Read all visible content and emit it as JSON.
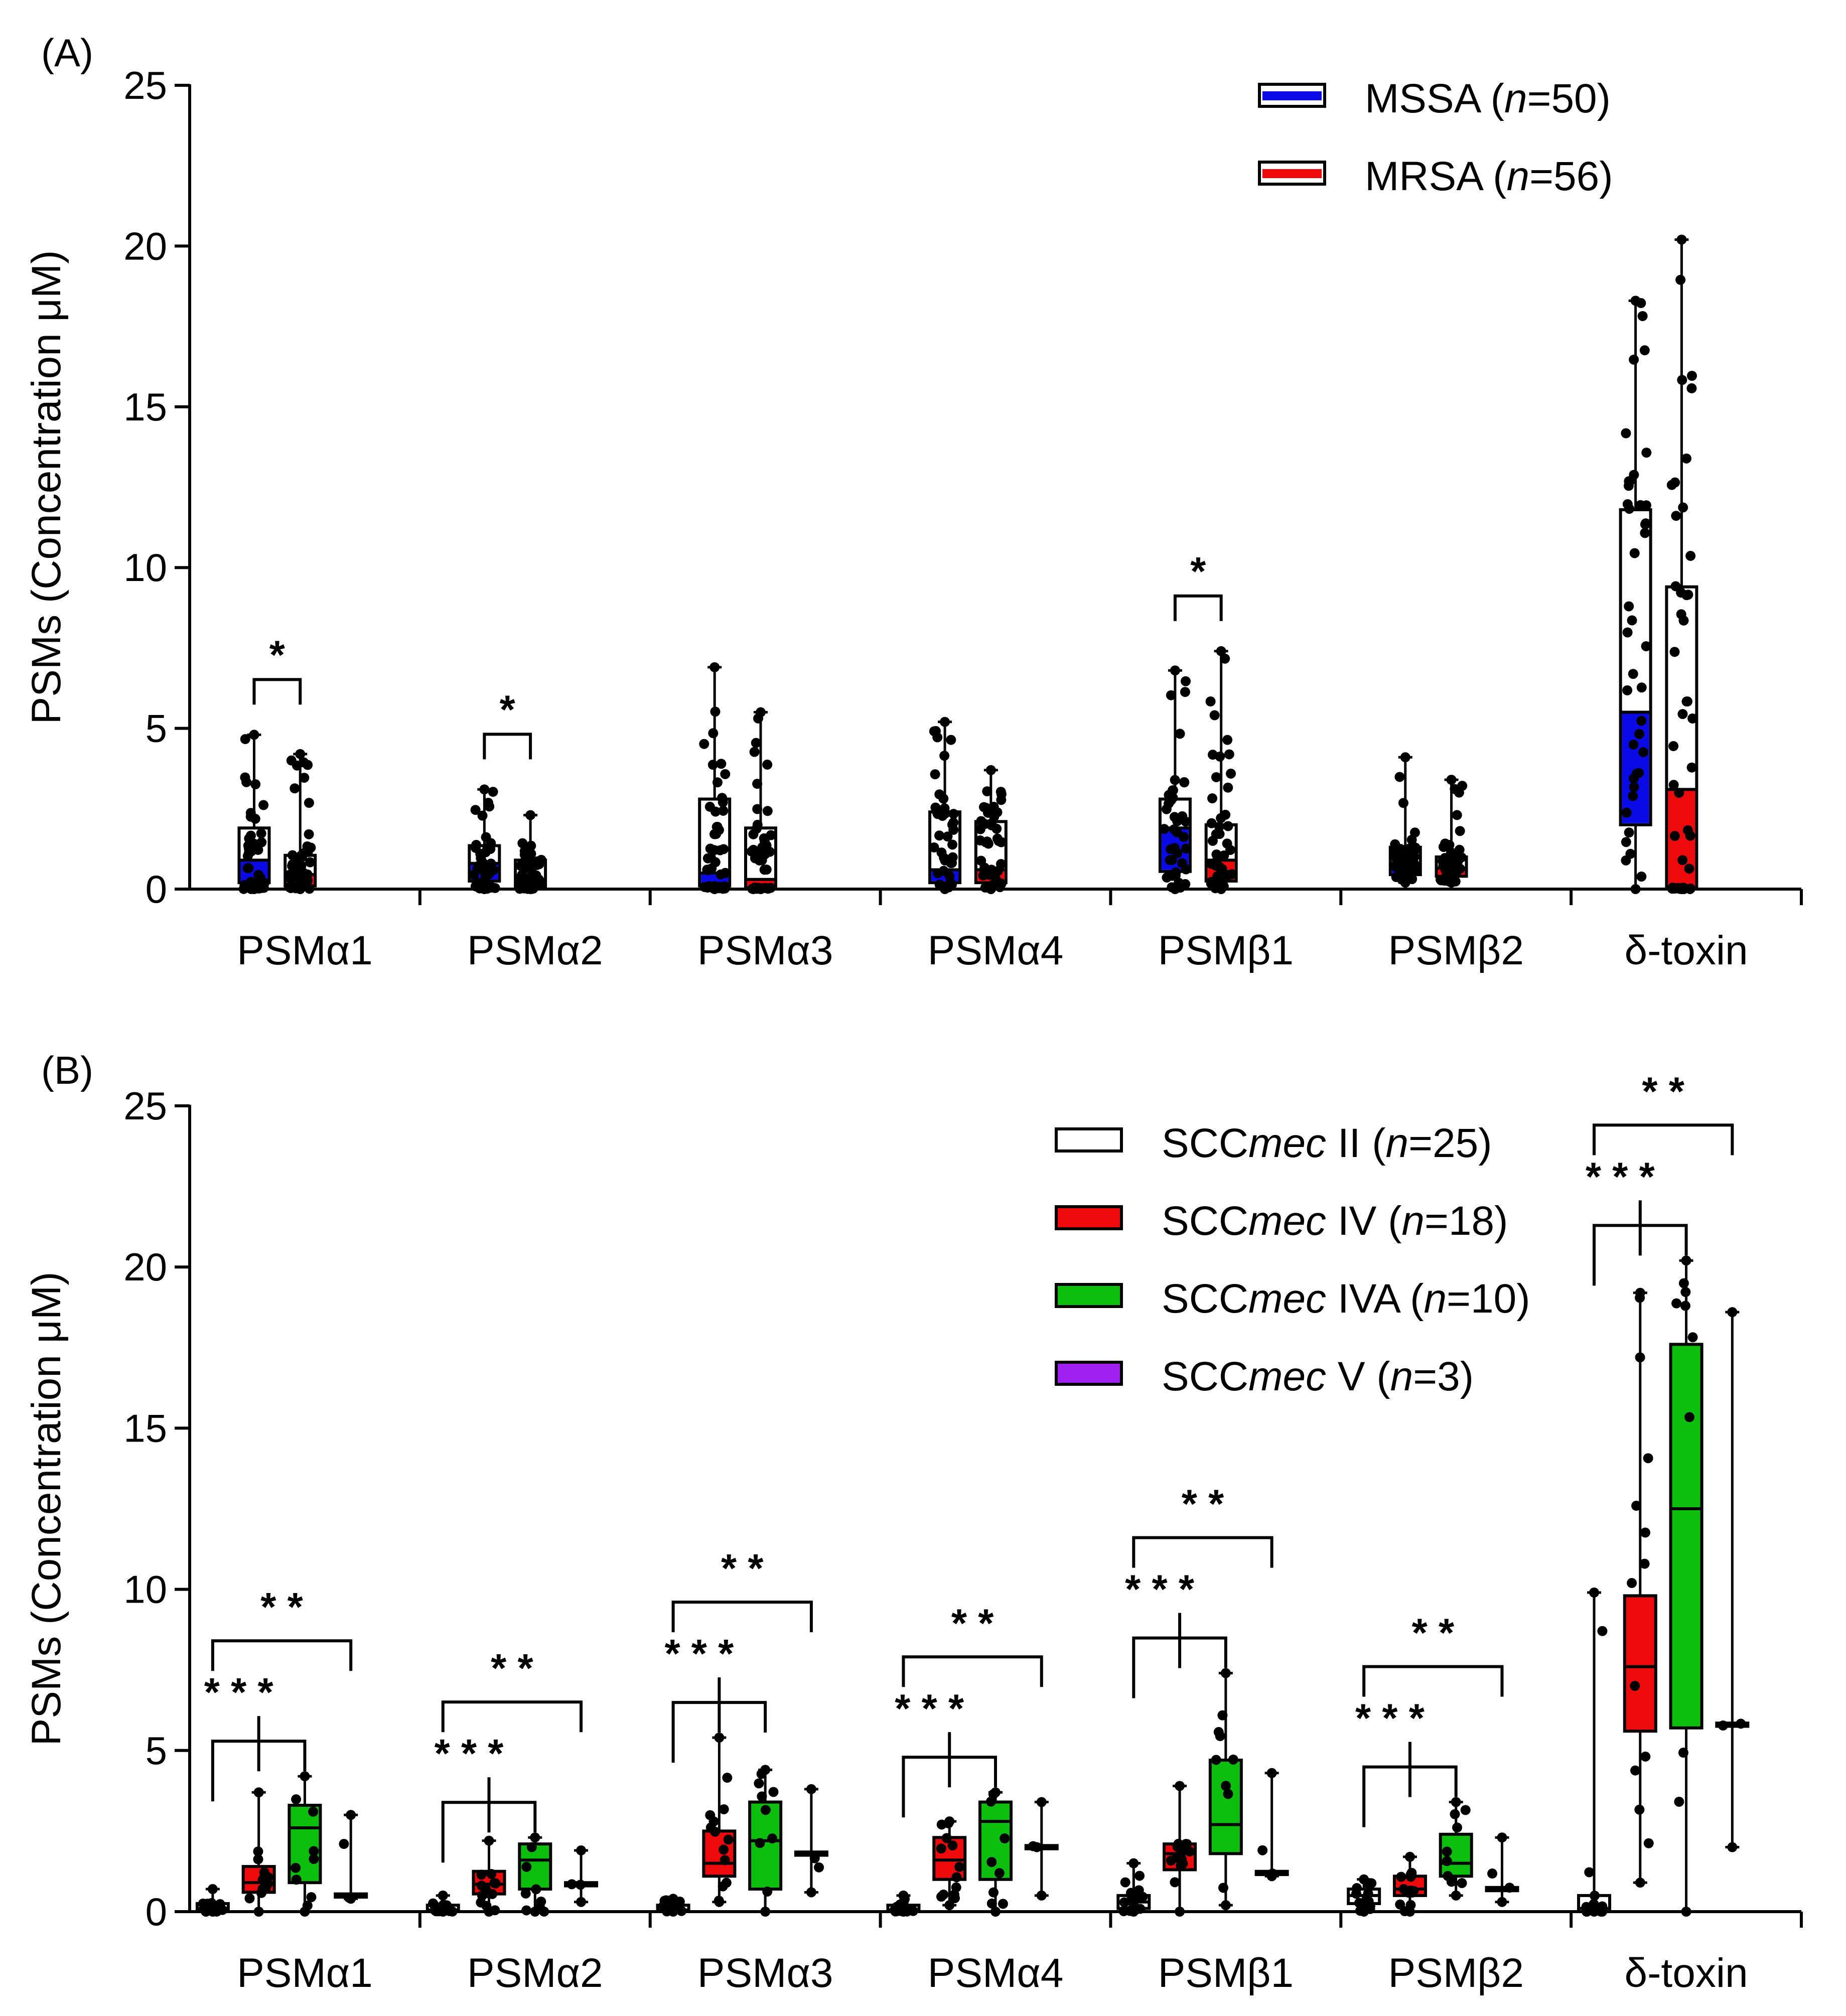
{
  "chart_data": [
    {
      "panel": "(A)",
      "type": "box",
      "ylabel": "PSMs (Concentration μM)",
      "ylim": [
        0,
        25
      ],
      "yticks": [
        0,
        5,
        10,
        15,
        20,
        25
      ],
      "categories": [
        "PSMα1",
        "PSMα2",
        "PSMα3",
        "PSMα4",
        "PSMβ1",
        "PSMβ2",
        "δ-toxin"
      ],
      "legend_position": "top-right",
      "series": [
        {
          "name": "MSSA",
          "n_label": "n",
          "n": "=50",
          "color": "#0a0ae6",
          "boxes": [
            {
              "min": 0,
              "q1": 0.2,
              "median": 0.9,
              "q3": 1.9,
              "max": 4.8
            },
            {
              "min": 0,
              "q1": 0.25,
              "median": 0.8,
              "q3": 1.35,
              "max": 3.1
            },
            {
              "min": 0,
              "q1": 0.1,
              "median": 0.5,
              "q3": 2.8,
              "max": 6.9
            },
            {
              "min": 0,
              "q1": 0.2,
              "median": 0.6,
              "q3": 2.4,
              "max": 5.2
            },
            {
              "min": 0,
              "q1": 0.55,
              "median": 1.9,
              "q3": 2.8,
              "max": 6.8
            },
            {
              "min": 0.2,
              "q1": 0.45,
              "median": 0.8,
              "q3": 1.3,
              "max": 4.1
            },
            {
              "min": 0,
              "q1": 2.0,
              "median": 5.5,
              "q3": 11.8,
              "max": 18.3
            }
          ]
        },
        {
          "name": "MRSA",
          "n_label": "n",
          "n": "=56",
          "color": "#ee0a0a",
          "boxes": [
            {
              "min": 0,
              "q1": 0.1,
              "median": 0.45,
              "q3": 1.05,
              "max": 4.2
            },
            {
              "min": 0,
              "q1": 0.05,
              "median": 0.3,
              "q3": 0.9,
              "max": 2.3
            },
            {
              "min": 0,
              "q1": 0.05,
              "median": 0.3,
              "q3": 1.9,
              "max": 5.5
            },
            {
              "min": 0,
              "q1": 0.2,
              "median": 0.6,
              "q3": 2.1,
              "max": 3.7
            },
            {
              "min": 0,
              "q1": 0.25,
              "median": 0.9,
              "q3": 2.0,
              "max": 7.4
            },
            {
              "min": 0.2,
              "q1": 0.4,
              "median": 0.65,
              "q3": 1.0,
              "max": 3.4
            },
            {
              "min": 0,
              "q1": 0.05,
              "median": 3.1,
              "q3": 9.4,
              "max": 20.2
            }
          ]
        }
      ],
      "significance": [
        {
          "category": "PSMα1",
          "label": "*"
        },
        {
          "category": "PSMα2",
          "label": "*"
        },
        {
          "category": "PSMβ1",
          "label": "*"
        }
      ]
    },
    {
      "panel": "(B)",
      "type": "box",
      "ylabel": "PSMs (Concentration μM)",
      "ylim": [
        0,
        25
      ],
      "yticks": [
        0,
        5,
        10,
        15,
        20,
        25
      ],
      "categories": [
        "PSMα1",
        "PSMα2",
        "PSMα3",
        "PSMα4",
        "PSMβ1",
        "PSMβ2",
        "δ-toxin"
      ],
      "legend_position": "top-right",
      "series": [
        {
          "name_prefix": "SCC",
          "name_italic": "mec",
          "name_suffix": " II",
          "n_label": "n",
          "n": "=25",
          "color": "#ffffff",
          "boxes": [
            {
              "min": 0,
              "q1": 0.02,
              "median": 0.1,
              "q3": 0.25,
              "max": 0.7
            },
            {
              "min": 0,
              "q1": 0.02,
              "median": 0.05,
              "q3": 0.2,
              "max": 0.5
            },
            {
              "min": 0,
              "q1": 0.02,
              "median": 0.05,
              "q3": 0.2,
              "max": 0.4
            },
            {
              "min": 0,
              "q1": 0.02,
              "median": 0.05,
              "q3": 0.2,
              "max": 0.5
            },
            {
              "min": 0,
              "q1": 0.1,
              "median": 0.3,
              "q3": 0.5,
              "max": 1.5
            },
            {
              "min": 0,
              "q1": 0.25,
              "median": 0.5,
              "q3": 0.7,
              "max": 1.0
            },
            {
              "min": 0,
              "q1": 0.0,
              "median": 0.1,
              "q3": 0.5,
              "max": 9.9
            }
          ]
        },
        {
          "name_prefix": "SCC",
          "name_italic": "mec",
          "name_suffix": " IV",
          "n_label": "n",
          "n": "=18",
          "color": "#ee0a0a",
          "boxes": [
            {
              "min": 0,
              "q1": 0.6,
              "median": 0.9,
              "q3": 1.4,
              "max": 3.7
            },
            {
              "min": 0,
              "q1": 0.55,
              "median": 0.85,
              "q3": 1.25,
              "max": 2.2
            },
            {
              "min": 0.3,
              "q1": 1.1,
              "median": 1.5,
              "q3": 2.5,
              "max": 5.4
            },
            {
              "min": 0.2,
              "q1": 1.0,
              "median": 1.6,
              "q3": 2.3,
              "max": 2.8
            },
            {
              "min": 0,
              "q1": 1.3,
              "median": 1.8,
              "q3": 2.1,
              "max": 3.9
            },
            {
              "min": 0,
              "q1": 0.5,
              "median": 0.7,
              "q3": 1.1,
              "max": 1.7
            },
            {
              "min": 0.9,
              "q1": 5.6,
              "median": 7.6,
              "q3": 9.8,
              "max": 19.2
            }
          ]
        },
        {
          "name_prefix": "SCC",
          "name_italic": "mec",
          "name_suffix": " IVA",
          "n_label": "n",
          "n": "=10",
          "color": "#0cbf0c",
          "boxes": [
            {
              "min": 0,
              "q1": 0.9,
              "median": 2.6,
              "q3": 3.3,
              "max": 4.2
            },
            {
              "min": 0,
              "q1": 0.7,
              "median": 1.6,
              "q3": 2.1,
              "max": 2.3
            },
            {
              "min": 0,
              "q1": 0.7,
              "median": 2.2,
              "q3": 3.4,
              "max": 4.4
            },
            {
              "min": 0,
              "q1": 1.0,
              "median": 2.8,
              "q3": 3.4,
              "max": 3.7
            },
            {
              "min": 0.2,
              "q1": 1.8,
              "median": 2.7,
              "q3": 4.7,
              "max": 7.4
            },
            {
              "min": 0.5,
              "q1": 1.1,
              "median": 1.5,
              "q3": 2.4,
              "max": 3.4
            },
            {
              "min": 0,
              "q1": 5.7,
              "median": 12.5,
              "q3": 17.6,
              "max": 20.2
            }
          ]
        },
        {
          "name_prefix": "SCC",
          "name_italic": "mec",
          "name_suffix": " V",
          "n_label": "n",
          "n": "=3",
          "color": "#a020f0",
          "boxes": [
            {
              "min": 0.4,
              "q1": 0.45,
              "median": 0.5,
              "q3": 0.55,
              "max": 3.0
            },
            {
              "min": 0.3,
              "q1": 0.8,
              "median": 0.85,
              "q3": 0.9,
              "max": 1.9
            },
            {
              "min": 0.6,
              "q1": 1.75,
              "median": 1.8,
              "q3": 1.85,
              "max": 3.8
            },
            {
              "min": 0.5,
              "q1": 1.95,
              "median": 2.0,
              "q3": 2.05,
              "max": 3.4
            },
            {
              "min": 1.1,
              "q1": 1.15,
              "median": 1.2,
              "q3": 1.25,
              "max": 4.3
            },
            {
              "min": 0.3,
              "q1": 0.65,
              "median": 0.7,
              "q3": 0.75,
              "max": 2.3
            },
            {
              "min": 2.0,
              "q1": 5.75,
              "median": 5.8,
              "q3": 5.85,
              "max": 18.6
            }
          ]
        }
      ],
      "significance": [
        {
          "category": "PSMα1",
          "label": "* *",
          "span": "II vs V"
        },
        {
          "category": "PSMα1",
          "label": "* * *",
          "span": "II vs IV, IVA"
        },
        {
          "category": "PSMα2",
          "label": "* *",
          "span": "II vs V"
        },
        {
          "category": "PSMα2",
          "label": "* * *",
          "span": "II vs IV, IVA"
        },
        {
          "category": "PSMα3",
          "label": "* *",
          "span": "II vs V"
        },
        {
          "category": "PSMα3",
          "label": "* * *",
          "span": "II vs IV, IVA"
        },
        {
          "category": "PSMα4",
          "label": "* *",
          "span": "II vs V"
        },
        {
          "category": "PSMα4",
          "label": "* * *",
          "span": "II vs IV, IVA"
        },
        {
          "category": "PSMβ1",
          "label": "* *",
          "span": "II vs V"
        },
        {
          "category": "PSMβ1",
          "label": "* * *",
          "span": "II vs IV, IVA"
        },
        {
          "category": "PSMβ2",
          "label": "* *",
          "span": "II vs V"
        },
        {
          "category": "PSMβ2",
          "label": "* * *",
          "span": "II vs IV, IVA"
        },
        {
          "category": "δ-toxin",
          "label": "* *",
          "span": "II vs V"
        },
        {
          "category": "δ-toxin",
          "label": "* * *",
          "span": "II vs IV, IVA"
        }
      ]
    }
  ]
}
